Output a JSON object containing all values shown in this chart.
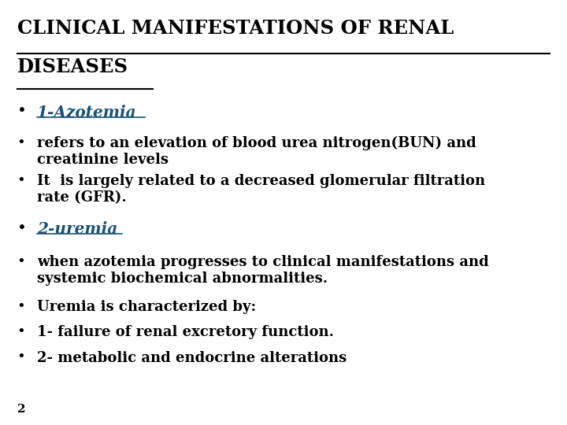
{
  "background_color": "#ffffff",
  "title_line1": "CLINICAL MANIFESTATIONS OF RENAL",
  "title_line2": "DISEASES",
  "title_color": "#000000",
  "title_fontsize": 17.5,
  "bullet_color": "#000000",
  "highlight_color": "#1a5276",
  "body_fontsize": 13.0,
  "highlight_fontsize": 14.5,
  "page_number": "2",
  "bullets": [
    {
      "text": "1-Azotemia",
      "style": "highlight"
    },
    {
      "text": "refers to an elevation of blood urea nitrogen(BUN) and\ncreatinine levels",
      "style": "normal"
    },
    {
      "text": "It  is largely related to a decreased glomerular filtration\nrate (GFR).",
      "style": "normal"
    },
    {
      "text": "2-uremia",
      "style": "highlight"
    },
    {
      "text": "when azotemia progresses to clinical manifestations and\nsystemic biochemical abnormalities.",
      "style": "normal"
    },
    {
      "text": "Uremia is characterized by:",
      "style": "normal"
    },
    {
      "text": "1- failure of renal excretory function.",
      "style": "normal"
    },
    {
      "text": "2- metabolic and endocrine alterations",
      "style": "normal"
    }
  ]
}
